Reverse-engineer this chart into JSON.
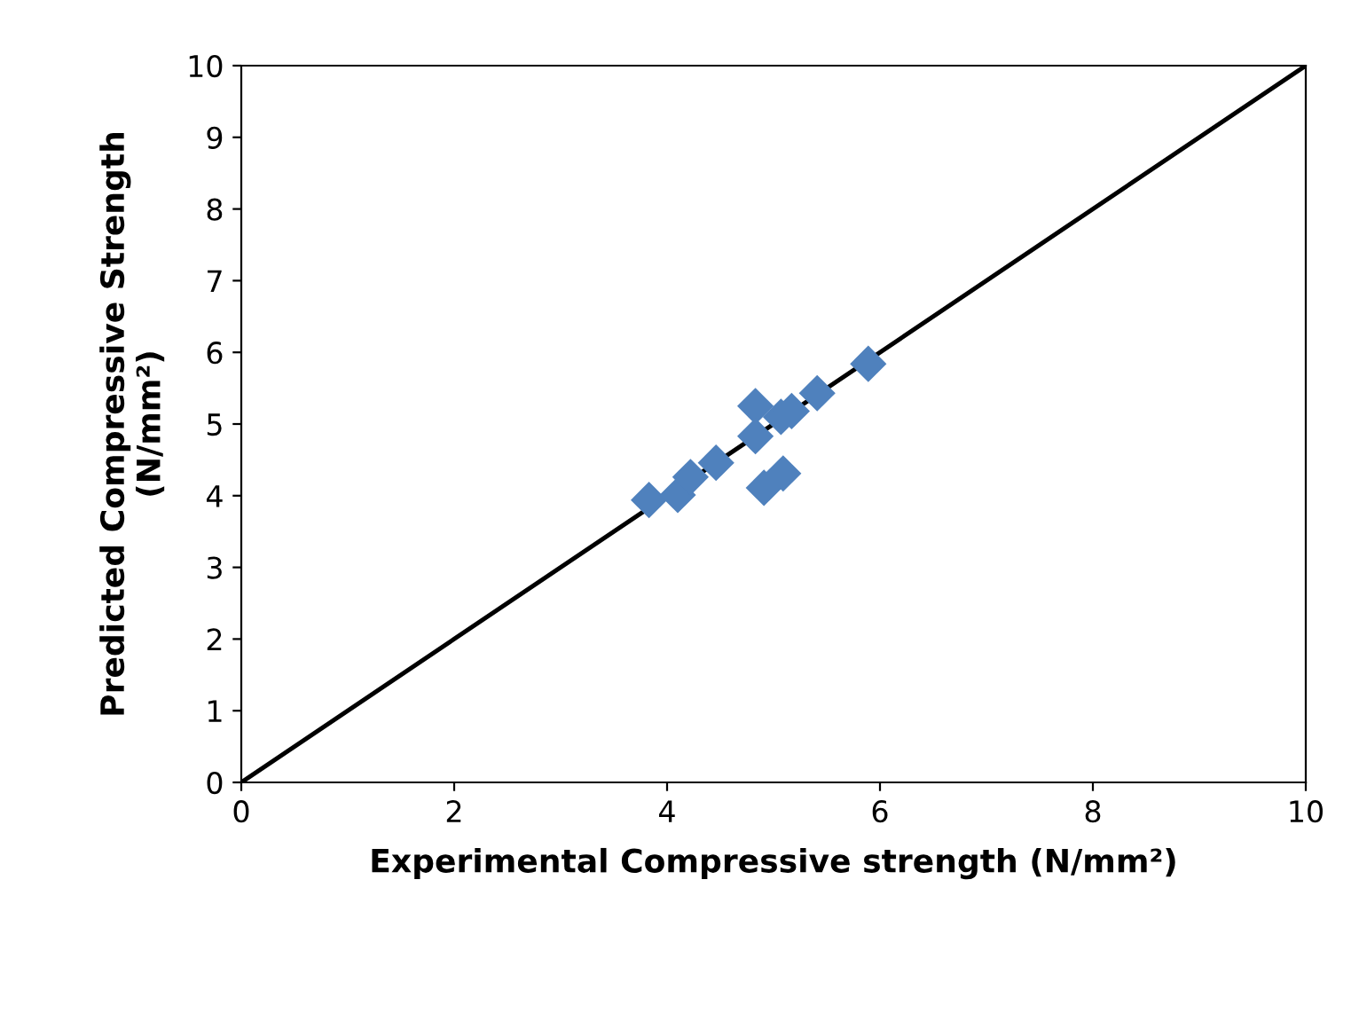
{
  "chart_data": {
    "type": "scatter",
    "xlabel": "Experimental Compressive strength (N/mm²)",
    "ylabel": "Predicted Compressive Strength\n(N/mm²)",
    "series": [
      {
        "color": "#4f81bd",
        "marker": "diamond",
        "x": [
          3.83,
          4.1,
          4.22,
          4.46,
          4.83,
          4.83,
          4.91,
          5.09,
          5.07,
          5.17,
          5.41,
          5.89
        ],
        "values": [
          3.94,
          4.01,
          4.26,
          4.46,
          5.25,
          4.83,
          4.11,
          4.31,
          5.1,
          5.18,
          5.43,
          5.84
        ]
      },
      {
        "type": "line",
        "color": "#000000",
        "x": [
          0,
          10
        ],
        "values": [
          0,
          10
        ]
      }
    ],
    "xlim": [
      0,
      10
    ],
    "ylim": [
      0,
      10
    ],
    "xticks": [
      0,
      2,
      4,
      6,
      8,
      10
    ],
    "yticks": [
      0,
      1,
      2,
      3,
      4,
      5,
      6,
      7,
      8,
      9,
      10
    ],
    "grid": false,
    "legend": false
  }
}
